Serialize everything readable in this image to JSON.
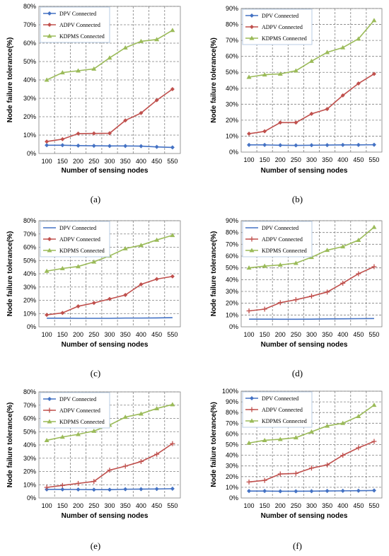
{
  "colors": {
    "dpv": "#4472C4",
    "adpv": "#C0504D",
    "kdpms": "#9BBB59",
    "grid": "#808080",
    "axis": "#808080",
    "legend_border": "#B8CCE4"
  },
  "chart_data": [
    {
      "type": "line",
      "label": "(a)",
      "x": [
        100,
        150,
        200,
        250,
        300,
        350,
        400,
        450,
        550
      ],
      "ylim": [
        0,
        80
      ],
      "ytick_step": 10,
      "grid": true,
      "legend": "top-left",
      "xlabel": "Number of sensing nodes",
      "ylabel": "Node failure tolerance(%)",
      "series": [
        {
          "name": "DPV Connected",
          "marker": "diamond",
          "color_key": "dpv",
          "values": [
            4.5,
            4.5,
            4.3,
            4.2,
            4.1,
            4.1,
            4.0,
            3.6,
            3.3
          ]
        },
        {
          "name": "ADPV Connected",
          "marker": "diamond",
          "color_key": "adpv",
          "values": [
            6.5,
            7.8,
            10.8,
            10.9,
            11.0,
            18.0,
            22.0,
            29.0,
            35.0
          ]
        },
        {
          "name": "KDPMS Connected",
          "marker": "triangle",
          "color_key": "kdpms",
          "values": [
            40.0,
            44.0,
            45.0,
            46.0,
            52.0,
            57.5,
            61.0,
            62.0,
            67.0
          ]
        }
      ]
    },
    {
      "type": "line",
      "label": "(b)",
      "x": [
        100,
        150,
        200,
        250,
        300,
        350,
        400,
        450,
        550
      ],
      "ylim": [
        0,
        90
      ],
      "ytick_step": 10,
      "grid": true,
      "legend": "top-left",
      "xlabel": "Number of sensing nodes",
      "ylabel": "Node failure tolerance(%)",
      "series": [
        {
          "name": "DPV Connected",
          "marker": "diamond",
          "color_key": "dpv",
          "values": [
            4.5,
            4.5,
            4.3,
            4.2,
            4.3,
            4.4,
            4.5,
            4.5,
            4.6
          ]
        },
        {
          "name": "ADPV Connected",
          "marker": "diamond",
          "color_key": "adpv",
          "values": [
            11.5,
            13.0,
            18.5,
            18.5,
            24.0,
            27.0,
            35.5,
            43.0,
            49.0
          ]
        },
        {
          "name": "KDPMS Connected",
          "marker": "triangle",
          "color_key": "kdpms",
          "values": [
            47.0,
            48.5,
            49.0,
            51.0,
            57.0,
            62.5,
            65.5,
            71.0,
            82.5
          ]
        }
      ]
    },
    {
      "type": "line",
      "label": "(c)",
      "x": [
        100,
        150,
        200,
        250,
        300,
        350,
        400,
        450,
        550
      ],
      "ylim": [
        0,
        80
      ],
      "ytick_step": 10,
      "grid": true,
      "legend": "top-left",
      "xlabel": "Number of sensing nodes",
      "ylabel": "Node failure tolerance(%)",
      "series": [
        {
          "name": "DPV Connected",
          "marker": "none",
          "color_key": "dpv",
          "values": [
            6.5,
            6.5,
            6.4,
            6.4,
            6.4,
            6.6,
            6.6,
            6.7,
            6.9
          ]
        },
        {
          "name": "ADPV Connected",
          "marker": "diamond",
          "color_key": "adpv",
          "values": [
            9.0,
            10.5,
            15.5,
            18.0,
            21.0,
            24.0,
            32.0,
            36.0,
            38.0
          ]
        },
        {
          "name": "KDPMS Connected",
          "marker": "triangle",
          "color_key": "kdpms",
          "values": [
            42.0,
            44.0,
            45.5,
            49.0,
            53.5,
            59.0,
            61.5,
            65.5,
            69.0
          ]
        }
      ]
    },
    {
      "type": "line",
      "label": "(d)",
      "x": [
        100,
        150,
        200,
        250,
        300,
        350,
        400,
        450,
        550
      ],
      "ylim": [
        0,
        90
      ],
      "ytick_step": 10,
      "grid": true,
      "legend": "top-left",
      "xlabel": "Number of sensing nodes",
      "ylabel": "Node failure tolerance(%)",
      "series": [
        {
          "name": "DPV Connected",
          "marker": "none",
          "color_key": "dpv",
          "values": [
            6.5,
            6.5,
            6.4,
            6.4,
            6.5,
            6.7,
            6.8,
            6.9,
            7.0
          ]
        },
        {
          "name": "ADPV Connected",
          "marker": "plus",
          "color_key": "adpv",
          "values": [
            13.5,
            15.0,
            20.5,
            23.0,
            26.0,
            29.5,
            37.0,
            45.0,
            51.0
          ]
        },
        {
          "name": "KDPMS Connected",
          "marker": "triangle",
          "color_key": "kdpms",
          "values": [
            50.0,
            51.5,
            52.5,
            54.0,
            59.0,
            65.0,
            68.0,
            73.5,
            84.5
          ]
        }
      ]
    },
    {
      "type": "line",
      "label": "(e)",
      "x": [
        100,
        150,
        200,
        250,
        300,
        350,
        400,
        450,
        550
      ],
      "ylim": [
        0,
        80
      ],
      "ytick_step": 10,
      "grid": true,
      "legend": "top-left",
      "xlabel": "Number of sensing nodes",
      "ylabel": "Node failure tolerance(%)",
      "series": [
        {
          "name": "DPV Connected",
          "marker": "diamond",
          "color_key": "dpv",
          "values": [
            6.5,
            6.5,
            6.4,
            6.3,
            6.3,
            6.6,
            6.7,
            6.8,
            7.0
          ]
        },
        {
          "name": "ADPV Connected",
          "marker": "plus",
          "color_key": "adpv",
          "values": [
            8.0,
            9.5,
            11.0,
            12.5,
            21.0,
            24.0,
            27.5,
            33.0,
            41.0
          ]
        },
        {
          "name": "KDPMS Connected",
          "marker": "triangle",
          "color_key": "kdpms",
          "values": [
            43.5,
            46.0,
            48.0,
            50.5,
            55.0,
            61.0,
            63.5,
            67.5,
            70.5
          ]
        }
      ]
    },
    {
      "type": "line",
      "label": "(f)",
      "x": [
        100,
        150,
        200,
        250,
        300,
        350,
        400,
        450,
        550
      ],
      "ylim": [
        0,
        100
      ],
      "ytick_step": 10,
      "grid": true,
      "legend": "top-left",
      "xlabel": "Number of sensing nodes",
      "ylabel": "Node failure tolerance(%)",
      "series": [
        {
          "name": "DPV Connected",
          "marker": "diamond",
          "color_key": "dpv",
          "values": [
            6.5,
            6.5,
            6.3,
            6.3,
            6.4,
            6.6,
            6.7,
            6.8,
            7.0
          ]
        },
        {
          "name": "ADPV Connected",
          "marker": "plus",
          "color_key": "adpv",
          "values": [
            15.0,
            16.5,
            22.5,
            23.0,
            28.0,
            31.0,
            40.0,
            47.0,
            53.0
          ]
        },
        {
          "name": "KDPMS Connected",
          "marker": "triangle",
          "color_key": "kdpms",
          "values": [
            51.5,
            54.0,
            55.0,
            56.5,
            62.0,
            67.5,
            70.0,
            76.5,
            87.0
          ]
        }
      ]
    }
  ]
}
